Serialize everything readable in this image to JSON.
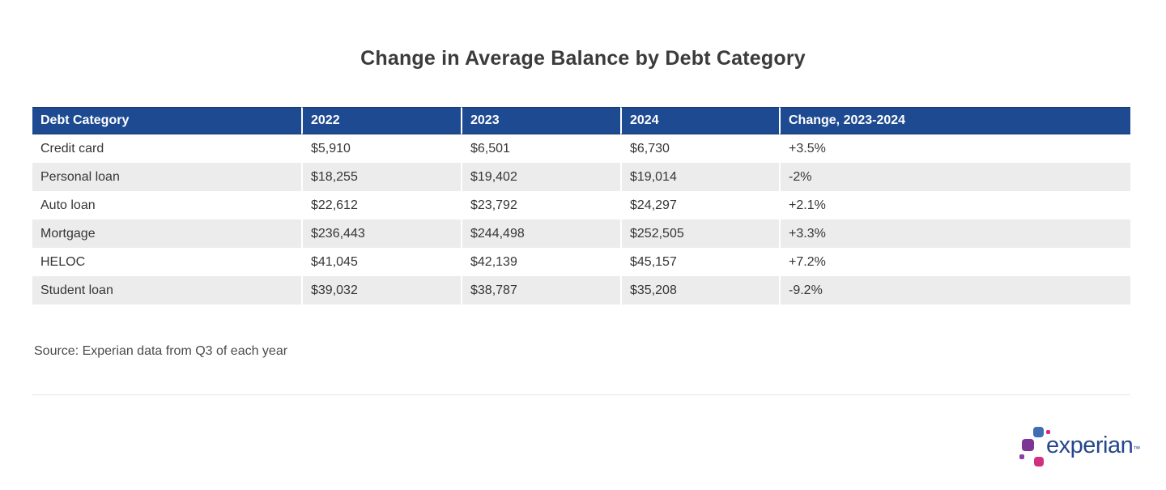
{
  "title": "Change in Average Balance by Debt Category",
  "table": {
    "columns": [
      "Debt Category",
      "2022",
      "2023",
      "2024",
      "Change, 2023-2024"
    ],
    "rows": [
      [
        "Credit card",
        "$5,910",
        "$6,501",
        "$6,730",
        "+3.5%"
      ],
      [
        "Personal loan",
        "$18,255",
        "$19,402",
        "$19,014",
        "-2%"
      ],
      [
        "Auto loan",
        "$22,612",
        "$23,792",
        "$24,297",
        "+2.1%"
      ],
      [
        "Mortgage",
        "$236,443",
        "$244,498",
        "$252,505",
        "+3.3%"
      ],
      [
        "HELOC",
        "$41,045",
        "$42,139",
        "$45,157",
        "+7.2%"
      ],
      [
        "Student loan",
        "$39,032",
        "$38,787",
        "$35,208",
        "-9.2%"
      ]
    ]
  },
  "chart_data": {
    "type": "table",
    "title": "Change in Average Balance by Debt Category",
    "columns": [
      "Debt Category",
      "2022",
      "2023",
      "2024",
      "Change, 2023-2024"
    ],
    "categories": [
      "Credit card",
      "Personal loan",
      "Auto loan",
      "Mortgage",
      "HELOC",
      "Student loan"
    ],
    "series": [
      {
        "name": "2022",
        "values": [
          5910,
          18255,
          22612,
          236443,
          41045,
          39032
        ]
      },
      {
        "name": "2023",
        "values": [
          6501,
          19402,
          23792,
          244498,
          42139,
          38787
        ]
      },
      {
        "name": "2024",
        "values": [
          6730,
          19014,
          24297,
          252505,
          45157,
          35208
        ]
      }
    ],
    "change_2023_2024_pct": [
      3.5,
      -2,
      2.1,
      3.3,
      7.2,
      -9.2
    ],
    "source": "Source: Experian data from Q3 of each year"
  },
  "source_note": "Source: Experian data from Q3 of each year",
  "logo": {
    "wordmark": "experian",
    "trademark": "™"
  },
  "colors": {
    "header_bg": "#1e4a91",
    "row_stripe": "#ececec",
    "body_text": "#363636",
    "logo_wordmark": "#26478d",
    "logo_blue": "#406eb3",
    "logo_purple": "#7d3596",
    "logo_magenta": "#d12f7f",
    "logo_pink": "#e0218a"
  }
}
